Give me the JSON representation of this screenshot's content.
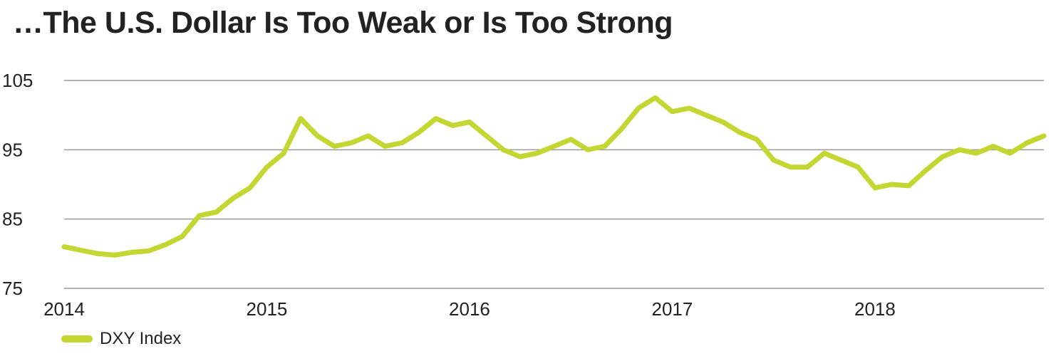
{
  "title": "…The U.S. Dollar Is Too Weak or Is Too Strong",
  "colors": {
    "series": "#c3d631",
    "grid": "#9a9a9a",
    "text": "#222222"
  },
  "chart_data": {
    "type": "line",
    "title": "…The U.S. Dollar Is Too Weak or Is Too Strong",
    "xlabel": "",
    "ylabel": "",
    "ylim": [
      75,
      105
    ],
    "xlim": [
      "2014-01",
      "2018-11"
    ],
    "y_ticks": [
      "75",
      "85",
      "95",
      "105"
    ],
    "x_ticks": [
      "2014",
      "2015",
      "2016",
      "2017",
      "2018"
    ],
    "grid": true,
    "legend": "bottom-left",
    "series": [
      {
        "name": "DXY Index",
        "x": [
          "2014-01",
          "2014-02",
          "2014-03",
          "2014-04",
          "2014-05",
          "2014-06",
          "2014-07",
          "2014-08",
          "2014-09",
          "2014-10",
          "2014-11",
          "2014-12",
          "2015-01",
          "2015-02",
          "2015-03",
          "2015-04",
          "2015-05",
          "2015-06",
          "2015-07",
          "2015-08",
          "2015-09",
          "2015-10",
          "2015-11",
          "2015-12",
          "2016-01",
          "2016-02",
          "2016-03",
          "2016-04",
          "2016-05",
          "2016-06",
          "2016-07",
          "2016-08",
          "2016-09",
          "2016-10",
          "2016-11",
          "2016-12",
          "2017-01",
          "2017-02",
          "2017-03",
          "2017-04",
          "2017-05",
          "2017-06",
          "2017-07",
          "2017-08",
          "2017-09",
          "2017-10",
          "2017-11",
          "2017-12",
          "2018-01",
          "2018-02",
          "2018-03",
          "2018-04",
          "2018-05",
          "2018-06",
          "2018-07",
          "2018-08",
          "2018-09",
          "2018-10",
          "2018-11"
        ],
        "values": [
          81.0,
          80.5,
          80.0,
          79.8,
          80.2,
          80.4,
          81.3,
          82.5,
          85.5,
          86.0,
          88.0,
          89.5,
          92.5,
          94.5,
          99.5,
          97.0,
          95.5,
          96.0,
          97.0,
          95.5,
          96.0,
          97.5,
          99.5,
          98.5,
          99.0,
          97.0,
          95.0,
          94.0,
          94.5,
          95.5,
          96.5,
          95.0,
          95.5,
          98.0,
          101.0,
          102.5,
          100.5,
          101.0,
          100.0,
          99.0,
          97.5,
          96.5,
          93.5,
          92.5,
          92.5,
          94.5,
          93.5,
          92.5,
          89.5,
          90.0,
          89.8,
          92.0,
          94.0,
          95.0,
          94.5,
          95.5,
          94.5,
          96.0,
          97.0
        ]
      }
    ]
  }
}
